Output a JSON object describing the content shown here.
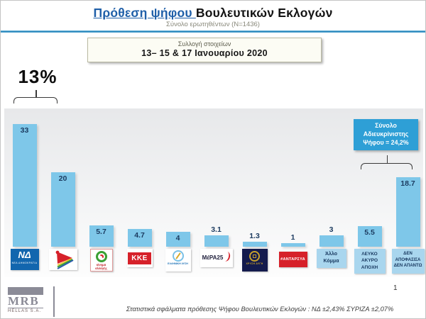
{
  "header": {
    "title_highlight": "Πρόθεση ψήφου ",
    "title_rest": "Βουλευτικών Εκλογών",
    "subtitle": "Σύνολο ερωτηθέντων (N=1436)"
  },
  "info_box": {
    "line1": "Συλλογή στοιχείων",
    "line2": "13– 15 & 17 Ιανουαρίου 2020"
  },
  "annotations": {
    "lead_label": "13%",
    "undecided_line1": "Σύνολο",
    "undecided_line2": "Αδιευκρίνιστης",
    "undecided_line3": "Ψήφου = 24,2%"
  },
  "chart_data": {
    "type": "bar",
    "title": "Πρόθεση ψήφου Βουλευτικών Εκλογών",
    "subtitle": "Σύνολο ερωτηθέντων (N=1436)",
    "categories": [
      "Νέα Δημοκρατία",
      "ΣΥΡΙΖΑ",
      "Κίνημα Αλλαγής",
      "ΚΚΕ",
      "Ελληνική Λύση",
      "ΜέΡΑ25",
      "Χρυσή Αυγή",
      "ΑΝΤΑΡΣΥΑ",
      "Άλλο Κόμμα",
      "Λευκό / Άκυρο / Αποχή",
      "Δεν αποφάσισα / Δεν απαντώ"
    ],
    "values": [
      33,
      20,
      5.7,
      4.7,
      4,
      3.1,
      1.3,
      1,
      3,
      5.5,
      18.7
    ],
    "value_labels": [
      "33",
      "20",
      "5.7",
      "4.7",
      "4",
      "3.1",
      "1.3",
      "1",
      "3",
      "5.5",
      "18.7"
    ],
    "ylim": [
      0,
      36
    ],
    "grid": false,
    "legend": false,
    "bar_color": "#7EC7E9",
    "value_color": "#1B3A5F",
    "annotations": [
      {
        "text": "13%",
        "spans_bars": [
          1,
          2
        ]
      },
      {
        "text": "Σύνολο Αδιευκρίνιστης Ψήφου = 24,2%",
        "spans_bars": [
          10,
          11
        ]
      }
    ]
  },
  "parties": [
    {
      "name": "Νέα Δημοκρατία",
      "value_label": "33",
      "logo_text": "ΝΔ",
      "logo_sub": "ΝΕΑ ΔΗΜΟΚΡΑΤΙΑ"
    },
    {
      "name": "ΣΥΡΙΖΑ",
      "value_label": "20"
    },
    {
      "name": "Κίνημα Αλλαγής",
      "value_label": "5.7",
      "logo_sub": "κίνημα αλλαγής"
    },
    {
      "name": "ΚΚΕ",
      "value_label": "4.7",
      "logo_text": "ΚΚΕ"
    },
    {
      "name": "Ελληνική Λύση",
      "value_label": "4",
      "logo_sub": "ΕΛΛΗΝΙΚΗ ΛΥΣΗ"
    },
    {
      "name": "ΜέΡΑ25",
      "value_label": "3.1",
      "logo_text": "ΜέΡΑ25"
    },
    {
      "name": "Χρυσή Αυγή",
      "value_label": "1.3",
      "logo_sub": "ΧΡΥΣΗ ΑΥΓΗ"
    },
    {
      "name": "ΑΝΤΑΡΣΥΑ",
      "value_label": "1",
      "logo_text": "#ΑΝΤΑΡΣΥΑ"
    },
    {
      "name": "Άλλο Κόμμα",
      "value_label": "3",
      "label_lines": [
        "Άλλο",
        "Κόμμα"
      ]
    },
    {
      "name": "Λευκό Άκυρο Αποχή",
      "value_label": "5.5",
      "label_lines": [
        "ΛΕΥΚΟ",
        "ΑΚΥΡΟ",
        "ΑΠΟΧΗ"
      ]
    },
    {
      "name": "Δεν αποφάσισα Δεν απαντώ",
      "value_label": "18.7",
      "label_lines": [
        "ΔΕΝ",
        "ΑΠΟΦΑΣΙΣΑ",
        "ΔΕΝ ΑΠΑΝΤΩ"
      ]
    }
  ],
  "footer": {
    "mrb_name": "MRB",
    "mrb_sub": "HELLAS S.A.",
    "note": "Στατιστικά σφάλματα πρόθεσης Ψήφου Βουλευτικών Εκλογών : ΝΔ ±2,43% ΣΥΡΙΖΑ ±2,07%",
    "page": "1"
  }
}
